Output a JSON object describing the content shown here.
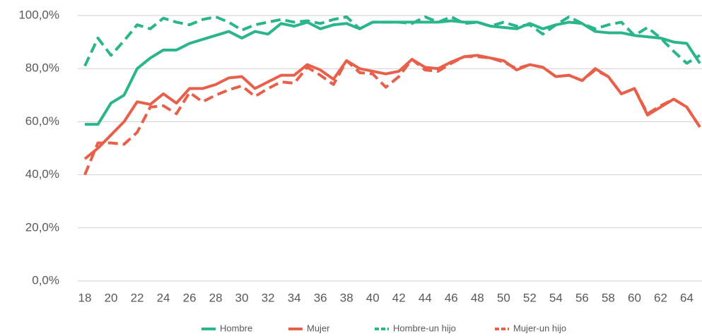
{
  "chart_data": {
    "type": "line",
    "x": [
      18,
      19,
      20,
      21,
      22,
      23,
      24,
      25,
      26,
      27,
      28,
      29,
      30,
      31,
      32,
      33,
      34,
      35,
      36,
      37,
      38,
      39,
      40,
      41,
      42,
      43,
      44,
      45,
      46,
      47,
      48,
      49,
      50,
      51,
      52,
      53,
      54,
      55,
      56,
      57,
      58,
      59,
      60,
      61,
      62,
      63,
      64,
      65
    ],
    "xlim": [
      18,
      65
    ],
    "xticks": [
      18,
      20,
      22,
      24,
      26,
      28,
      30,
      32,
      34,
      36,
      38,
      40,
      42,
      44,
      46,
      48,
      50,
      52,
      54,
      56,
      58,
      60,
      62,
      64
    ],
    "ylim": [
      0,
      100
    ],
    "yticks": [
      {
        "value": 0,
        "label": "0,0%"
      },
      {
        "value": 20,
        "label": "20,0%"
      },
      {
        "value": 40,
        "label": "40,0%"
      },
      {
        "value": 60,
        "label": "60,0%"
      },
      {
        "value": 80,
        "label": "80,0%"
      },
      {
        "value": 100,
        "label": "100,0%"
      }
    ],
    "grid": true,
    "legend": "bottom",
    "series": [
      {
        "name": "Hombre",
        "color": "#2bb58b",
        "dashed": false,
        "values": [
          59,
          59,
          67,
          70,
          80,
          84,
          87,
          87,
          89.5,
          91,
          92.5,
          94,
          91.5,
          94,
          93,
          97,
          96,
          97.5,
          95,
          96.5,
          97,
          95,
          97.5,
          97.5,
          97.5,
          97.5,
          97.5,
          97.5,
          98,
          97.5,
          97.5,
          96,
          95.5,
          95,
          97,
          95,
          96.5,
          97.5,
          97,
          94,
          93.5,
          93.5,
          92.5,
          92,
          91.5,
          90,
          89.5,
          82
        ]
      },
      {
        "name": "Mujer",
        "color": "#e8604a",
        "dashed": false,
        "values": [
          46,
          50,
          55,
          60,
          67.5,
          66.5,
          70.5,
          67,
          72.5,
          72.5,
          74,
          76.5,
          77,
          72.5,
          75,
          77.5,
          77.5,
          81.5,
          79.5,
          76,
          83,
          80,
          79,
          78,
          79,
          83.5,
          80.5,
          80,
          82.5,
          84.5,
          85,
          84,
          83,
          79.5,
          81.5,
          80.5,
          77,
          77.5,
          75.5,
          80,
          77,
          70.5,
          72.5,
          62.5,
          65.5,
          68.5,
          65.5,
          58
        ]
      },
      {
        "name": "Hombre-un hijo",
        "color": "#2bb58b",
        "dashed": true,
        "values": [
          81,
          91.5,
          85,
          90.5,
          96.5,
          95,
          99,
          97.5,
          96.5,
          98.5,
          99.5,
          97.5,
          94.5,
          96.5,
          97.5,
          98.5,
          97.5,
          98,
          97,
          98.5,
          99.5,
          95,
          97.5,
          97.5,
          97.5,
          97,
          99.5,
          97.5,
          99.5,
          97,
          97.5,
          96,
          97.5,
          96,
          96.5,
          93,
          96.5,
          99.5,
          97,
          95,
          96.5,
          97.5,
          92.5,
          95.5,
          91.5,
          86.5,
          82,
          85
        ]
      },
      {
        "name": "Mujer-un hijo",
        "color": "#e8604a",
        "dashed": true,
        "values": [
          40,
          52,
          52,
          51.5,
          56,
          65.5,
          66,
          63,
          71,
          67.5,
          70,
          72,
          73.5,
          69.5,
          72.5,
          75,
          74.5,
          80.5,
          77.5,
          74,
          83,
          78.5,
          78,
          73,
          77,
          83.5,
          79.5,
          79,
          82,
          84.5,
          84.5,
          84,
          82.5,
          80,
          81.5,
          80.5,
          77,
          77.5,
          75.5,
          79.5,
          77,
          70.5,
          72.5,
          63,
          66,
          68.5,
          65.5,
          58
        ]
      }
    ]
  }
}
